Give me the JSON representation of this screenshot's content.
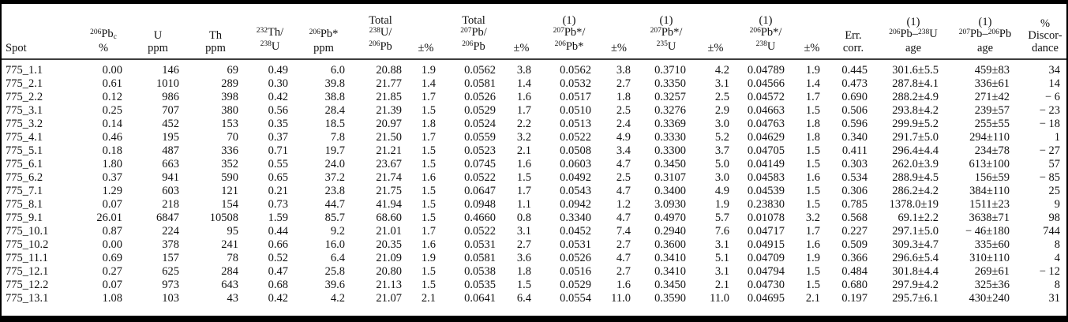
{
  "colors": {
    "background": "#ffffff",
    "text": "#121212",
    "outer_border": "#000000",
    "header_rule": "#3d3d3d"
  },
  "table": {
    "columns": [
      {
        "id": "spot",
        "lines": [
          [
            {
              "t": "Spot"
            }
          ]
        ]
      },
      {
        "id": "pb206c-pct",
        "lines": [
          [
            {
              "sup": "206"
            },
            {
              "t": "Pb"
            },
            {
              "sub": "c"
            }
          ],
          [
            {
              "t": "%"
            }
          ]
        ]
      },
      {
        "id": "u-ppm",
        "lines": [
          [
            {
              "t": "U"
            }
          ],
          [
            {
              "t": "ppm"
            }
          ]
        ]
      },
      {
        "id": "th-ppm",
        "lines": [
          [
            {
              "t": "Th"
            }
          ],
          [
            {
              "t": "ppm"
            }
          ]
        ]
      },
      {
        "id": "th232-u238",
        "lines": [
          [
            {
              "sup": "232"
            },
            {
              "t": "Th/"
            }
          ],
          [
            {
              "sup": "238"
            },
            {
              "t": "U"
            }
          ]
        ]
      },
      {
        "id": "pb206-star-ppm",
        "lines": [
          [
            {
              "sup": "206"
            },
            {
              "t": "Pb*"
            }
          ],
          [
            {
              "t": "ppm"
            }
          ]
        ]
      },
      {
        "id": "total-u238-pb206",
        "lines": [
          [
            {
              "t": "Total"
            }
          ],
          [
            {
              "sup": "238"
            },
            {
              "t": "U/"
            }
          ],
          [
            {
              "sup": "206"
            },
            {
              "t": "Pb"
            }
          ]
        ]
      },
      {
        "id": "pm-total-u238-pb206",
        "lines": [
          [
            {
              "t": "±%"
            }
          ]
        ]
      },
      {
        "id": "total-pb207-pb206",
        "lines": [
          [
            {
              "t": "Total"
            }
          ],
          [
            {
              "sup": "207"
            },
            {
              "t": "Pb/"
            }
          ],
          [
            {
              "sup": "206"
            },
            {
              "t": "Pb"
            }
          ]
        ]
      },
      {
        "id": "pm-total-pb207-pb206",
        "lines": [
          [
            {
              "t": "±%"
            }
          ]
        ]
      },
      {
        "id": "pb207s-pb206s",
        "lines": [
          [
            {
              "t": "(1)"
            }
          ],
          [
            {
              "sup": "207"
            },
            {
              "t": "Pb*/"
            }
          ],
          [
            {
              "sup": "206"
            },
            {
              "t": "Pb*"
            }
          ]
        ]
      },
      {
        "id": "pm-pb207s-pb206s",
        "lines": [
          [
            {
              "t": "±%"
            }
          ]
        ]
      },
      {
        "id": "pb207s-u235",
        "lines": [
          [
            {
              "t": "(1)"
            }
          ],
          [
            {
              "sup": "207"
            },
            {
              "t": "Pb*/"
            }
          ],
          [
            {
              "sup": "235"
            },
            {
              "t": "U"
            }
          ]
        ]
      },
      {
        "id": "pm-pb207s-u235",
        "lines": [
          [
            {
              "t": "±%"
            }
          ]
        ]
      },
      {
        "id": "pb206s-u238",
        "lines": [
          [
            {
              "t": "(1)"
            }
          ],
          [
            {
              "sup": "206"
            },
            {
              "t": "Pb*/"
            }
          ],
          [
            {
              "sup": "238"
            },
            {
              "t": "U"
            }
          ]
        ]
      },
      {
        "id": "pm-pb206s-u238",
        "lines": [
          [
            {
              "t": "±%"
            }
          ]
        ]
      },
      {
        "id": "err-corr",
        "lines": [
          [
            {
              "t": "Err."
            }
          ],
          [
            {
              "t": "corr."
            }
          ]
        ]
      },
      {
        "id": "age-pb206-u238",
        "lines": [
          [
            {
              "t": "(1)"
            }
          ],
          [
            {
              "sup": "206"
            },
            {
              "t": "Pb–"
            },
            {
              "sup": "238"
            },
            {
              "t": "U"
            }
          ],
          [
            {
              "t": "age"
            }
          ]
        ]
      },
      {
        "id": "age-pb207-pb206",
        "lines": [
          [
            {
              "t": "(1)"
            }
          ],
          [
            {
              "sup": "207"
            },
            {
              "t": "Pb–"
            },
            {
              "sup": "206"
            },
            {
              "t": "Pb"
            }
          ],
          [
            {
              "t": "age"
            }
          ]
        ]
      },
      {
        "id": "discordance",
        "lines": [
          [
            {
              "t": "%"
            }
          ],
          [
            {
              "t": "Discor-"
            }
          ],
          [
            {
              "t": "dance"
            }
          ]
        ]
      }
    ],
    "rows": [
      [
        "775_1.1",
        "0.00",
        "146",
        "69",
        "0.49",
        "6.0",
        "20.88",
        "1.9",
        "0.0562",
        "3.8",
        "0.0562",
        "3.8",
        "0.3710",
        "4.2",
        "0.04789",
        "1.9",
        "0.445",
        "301.6±5.5",
        "459±83",
        "34"
      ],
      [
        "775_2.1",
        "0.61",
        "1010",
        "289",
        "0.30",
        "39.8",
        "21.77",
        "1.4",
        "0.0581",
        "1.4",
        "0.0532",
        "2.7",
        "0.3350",
        "3.1",
        "0.04566",
        "1.4",
        "0.473",
        "287.8±4.1",
        "336±61",
        "14"
      ],
      [
        "775_2.2",
        "0.12",
        "986",
        "398",
        "0.42",
        "38.8",
        "21.85",
        "1.7",
        "0.0526",
        "1.6",
        "0.0517",
        "1.8",
        "0.3257",
        "2.5",
        "0.04572",
        "1.7",
        "0.690",
        "288.2±4.9",
        "271±42",
        "− 6"
      ],
      [
        "775_3.1",
        "0.25",
        "707",
        "380",
        "0.56",
        "28.4",
        "21.39",
        "1.5",
        "0.0529",
        "1.7",
        "0.0510",
        "2.5",
        "0.3276",
        "2.9",
        "0.04663",
        "1.5",
        "0.506",
        "293.8±4.2",
        "239±57",
        "− 23"
      ],
      [
        "775_3.2",
        "0.14",
        "452",
        "153",
        "0.35",
        "18.5",
        "20.97",
        "1.8",
        "0.0524",
        "2.2",
        "0.0513",
        "2.4",
        "0.3369",
        "3.0",
        "0.04763",
        "1.8",
        "0.596",
        "299.9±5.2",
        "255±55",
        "− 18"
      ],
      [
        "775_4.1",
        "0.46",
        "195",
        "70",
        "0.37",
        "7.8",
        "21.50",
        "1.7",
        "0.0559",
        "3.2",
        "0.0522",
        "4.9",
        "0.3330",
        "5.2",
        "0.04629",
        "1.8",
        "0.340",
        "291.7±5.0",
        "294±110",
        "1"
      ],
      [
        "775_5.1",
        "0.18",
        "487",
        "336",
        "0.71",
        "19.7",
        "21.21",
        "1.5",
        "0.0523",
        "2.1",
        "0.0508",
        "3.4",
        "0.3300",
        "3.7",
        "0.04705",
        "1.5",
        "0.411",
        "296.4±4.4",
        "234±78",
        "− 27"
      ],
      [
        "775_6.1",
        "1.80",
        "663",
        "352",
        "0.55",
        "24.0",
        "23.67",
        "1.5",
        "0.0745",
        "1.6",
        "0.0603",
        "4.7",
        "0.3450",
        "5.0",
        "0.04149",
        "1.5",
        "0.303",
        "262.0±3.9",
        "613±100",
        "57"
      ],
      [
        "775_6.2",
        "0.37",
        "941",
        "590",
        "0.65",
        "37.2",
        "21.74",
        "1.6",
        "0.0522",
        "1.5",
        "0.0492",
        "2.5",
        "0.3107",
        "3.0",
        "0.04583",
        "1.6",
        "0.534",
        "288.9±4.5",
        "156±59",
        "− 85"
      ],
      [
        "775_7.1",
        "1.29",
        "603",
        "121",
        "0.21",
        "23.8",
        "21.75",
        "1.5",
        "0.0647",
        "1.7",
        "0.0543",
        "4.7",
        "0.3400",
        "4.9",
        "0.04539",
        "1.5",
        "0.306",
        "286.2±4.2",
        "384±110",
        "25"
      ],
      [
        "775_8.1",
        "0.07",
        "218",
        "154",
        "0.73",
        "44.7",
        "41.94",
        "1.5",
        "0.0948",
        "1.1",
        "0.0942",
        "1.2",
        "3.0930",
        "1.9",
        "0.23830",
        "1.5",
        "0.785",
        "1378.0±19",
        "1511±23",
        "9"
      ],
      [
        "775_9.1",
        "26.01",
        "6847",
        "10508",
        "1.59",
        "85.7",
        "68.60",
        "1.5",
        "0.4660",
        "0.8",
        "0.3340",
        "4.7",
        "0.4970",
        "5.7",
        "0.01078",
        "3.2",
        "0.568",
        "69.1±2.2",
        "3638±71",
        "98"
      ],
      [
        "775_10.1",
        "0.87",
        "224",
        "95",
        "0.44",
        "9.2",
        "21.01",
        "1.7",
        "0.0522",
        "3.1",
        "0.0452",
        "7.4",
        "0.2940",
        "7.6",
        "0.04717",
        "1.7",
        "0.227",
        "297.1±5.0",
        "− 46±180",
        "744"
      ],
      [
        "775_10.2",
        "0.00",
        "378",
        "241",
        "0.66",
        "16.0",
        "20.35",
        "1.6",
        "0.0531",
        "2.7",
        "0.0531",
        "2.7",
        "0.3600",
        "3.1",
        "0.04915",
        "1.6",
        "0.509",
        "309.3±4.7",
        "335±60",
        "8"
      ],
      [
        "775_11.1",
        "0.69",
        "157",
        "78",
        "0.52",
        "6.4",
        "21.09",
        "1.9",
        "0.0581",
        "3.6",
        "0.0526",
        "4.7",
        "0.3410",
        "5.1",
        "0.04709",
        "1.9",
        "0.366",
        "296.6±5.4",
        "310±110",
        "4"
      ],
      [
        "775_12.1",
        "0.27",
        "625",
        "284",
        "0.47",
        "25.8",
        "20.80",
        "1.5",
        "0.0538",
        "1.8",
        "0.0516",
        "2.7",
        "0.3410",
        "3.1",
        "0.04794",
        "1.5",
        "0.484",
        "301.8±4.4",
        "269±61",
        "− 12"
      ],
      [
        "775_12.2",
        "0.07",
        "973",
        "643",
        "0.68",
        "39.6",
        "21.13",
        "1.5",
        "0.0535",
        "1.5",
        "0.0529",
        "1.6",
        "0.3450",
        "2.1",
        "0.04730",
        "1.5",
        "0.680",
        "297.9±4.2",
        "325±36",
        "8"
      ],
      [
        "775_13.1",
        "1.08",
        "103",
        "43",
        "0.42",
        "4.2",
        "21.07",
        "2.1",
        "0.0641",
        "6.4",
        "0.0554",
        "11.0",
        "0.3590",
        "11.0",
        "0.04695",
        "2.1",
        "0.197",
        "295.7±6.1",
        "430±240",
        "31"
      ]
    ]
  }
}
